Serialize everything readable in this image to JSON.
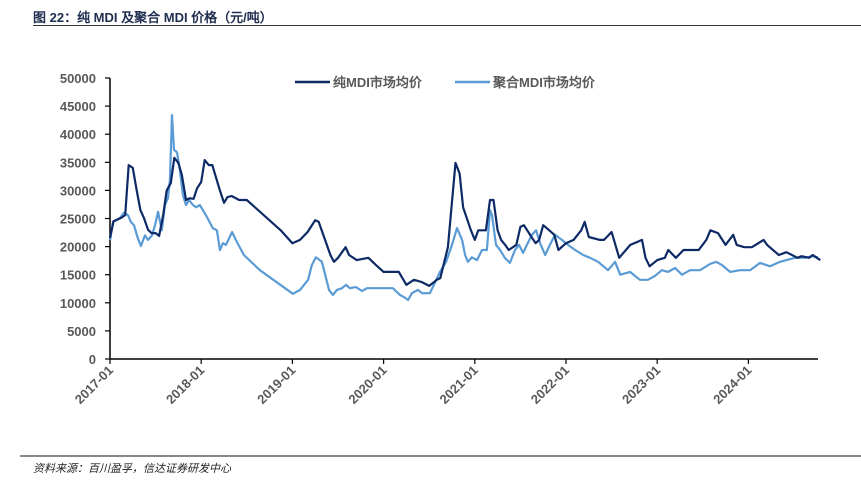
{
  "title": "图 22：纯 MDI 及聚合 MDI 价格（元/吨）",
  "source": "资料来源：百川盈孚，信达证券研发中心",
  "chart_data": {
    "type": "line",
    "title": "",
    "xlabel": "",
    "ylabel": "",
    "ylim": [
      0,
      50000
    ],
    "yticks": [
      "0",
      "5000",
      "10000",
      "15000",
      "20000",
      "25000",
      "30000",
      "35000",
      "40000",
      "45000",
      "50000"
    ],
    "xticks": [
      "2017-01",
      "2018-01",
      "2019-01",
      "2020-01",
      "2021-01",
      "2022-01",
      "2023-01",
      "2024-01"
    ],
    "grid": false,
    "legend_position": "top",
    "series": [
      {
        "name": "纯MDI市场均价",
        "color": "#0d2a66",
        "points": [
          [
            "2017-01-01",
            21500
          ],
          [
            "2017-01-15",
            24500
          ],
          [
            "2017-02-15",
            25100
          ],
          [
            "2017-03-01",
            25600
          ],
          [
            "2017-03-15",
            34500
          ],
          [
            "2017-04-01",
            34000
          ],
          [
            "2017-04-15",
            30400
          ],
          [
            "2017-05-01",
            26500
          ],
          [
            "2017-05-15",
            25100
          ],
          [
            "2017-06-01",
            23000
          ],
          [
            "2017-06-15",
            22400
          ],
          [
            "2017-07-01",
            22400
          ],
          [
            "2017-07-15",
            21900
          ],
          [
            "2017-08-01",
            25600
          ],
          [
            "2017-08-15",
            30000
          ],
          [
            "2017-09-01",
            31300
          ],
          [
            "2017-09-15",
            35800
          ],
          [
            "2017-10-01",
            34900
          ],
          [
            "2017-10-15",
            32700
          ],
          [
            "2017-11-01",
            28300
          ],
          [
            "2017-11-15",
            28600
          ],
          [
            "2017-12-01",
            28500
          ],
          [
            "2017-12-15",
            30400
          ],
          [
            "2018-01-01",
            31500
          ],
          [
            "2018-01-15",
            35400
          ],
          [
            "2018-02-01",
            34500
          ],
          [
            "2018-02-15",
            34500
          ],
          [
            "2018-03-15",
            30000
          ],
          [
            "2018-04-01",
            27800
          ],
          [
            "2018-04-15",
            28800
          ],
          [
            "2018-05-01",
            29000
          ],
          [
            "2018-06-01",
            28300
          ],
          [
            "2018-07-01",
            28300
          ],
          [
            "2018-11-15",
            22900
          ],
          [
            "2019-01-01",
            20600
          ],
          [
            "2019-02-01",
            21200
          ],
          [
            "2019-03-01",
            22600
          ],
          [
            "2019-04-01",
            24700
          ],
          [
            "2019-04-15",
            24400
          ],
          [
            "2019-06-01",
            18500
          ],
          [
            "2019-06-15",
            17300
          ],
          [
            "2019-07-01",
            18000
          ],
          [
            "2019-08-01",
            19900
          ],
          [
            "2019-08-15",
            18500
          ],
          [
            "2019-09-15",
            17600
          ],
          [
            "2019-11-01",
            18000
          ],
          [
            "2019-12-01",
            16700
          ],
          [
            "2020-01-01",
            15500
          ],
          [
            "2020-03-01",
            15500
          ],
          [
            "2020-04-01",
            13200
          ],
          [
            "2020-05-01",
            14100
          ],
          [
            "2020-06-01",
            13700
          ],
          [
            "2020-07-01",
            13000
          ],
          [
            "2020-07-15",
            13500
          ],
          [
            "2020-08-01",
            14100
          ],
          [
            "2020-08-15",
            14400
          ],
          [
            "2020-09-15",
            19900
          ],
          [
            "2020-10-15",
            34900
          ],
          [
            "2020-11-01",
            33000
          ],
          [
            "2020-11-15",
            27000
          ],
          [
            "2020-12-15",
            23000
          ],
          [
            "2021-01-01",
            21200
          ],
          [
            "2021-01-15",
            22900
          ],
          [
            "2021-02-15",
            22900
          ],
          [
            "2021-03-01",
            28300
          ],
          [
            "2021-03-15",
            28300
          ],
          [
            "2021-04-01",
            22900
          ],
          [
            "2021-04-15",
            21200
          ],
          [
            "2021-05-01",
            20300
          ],
          [
            "2021-05-15",
            19400
          ],
          [
            "2021-06-15",
            20300
          ],
          [
            "2021-07-01",
            23500
          ],
          [
            "2021-07-15",
            23800
          ],
          [
            "2021-08-15",
            21700
          ],
          [
            "2021-09-01",
            20600
          ],
          [
            "2021-09-15",
            21200
          ],
          [
            "2021-10-01",
            23800
          ],
          [
            "2021-10-15",
            23300
          ],
          [
            "2021-11-15",
            22100
          ],
          [
            "2021-12-01",
            19400
          ],
          [
            "2022-01-01",
            20600
          ],
          [
            "2022-02-01",
            21200
          ],
          [
            "2022-03-01",
            22900
          ],
          [
            "2022-03-15",
            24400
          ],
          [
            "2022-04-01",
            21700
          ],
          [
            "2022-05-15",
            21200
          ],
          [
            "2022-06-01",
            21200
          ],
          [
            "2022-07-01",
            22600
          ],
          [
            "2022-08-01",
            18000
          ],
          [
            "2022-09-15",
            20300
          ],
          [
            "2022-11-01",
            21200
          ],
          [
            "2022-11-15",
            18000
          ],
          [
            "2022-12-01",
            16500
          ],
          [
            "2023-01-01",
            17600
          ],
          [
            "2023-02-01",
            18000
          ],
          [
            "2023-02-15",
            19400
          ],
          [
            "2023-03-15",
            18000
          ],
          [
            "2023-04-15",
            19400
          ],
          [
            "2023-06-15",
            19400
          ],
          [
            "2023-07-15",
            21200
          ],
          [
            "2023-08-01",
            22900
          ],
          [
            "2023-09-01",
            22400
          ],
          [
            "2023-10-01",
            20300
          ],
          [
            "2023-11-01",
            22100
          ],
          [
            "2023-11-15",
            20300
          ],
          [
            "2023-12-15",
            19900
          ],
          [
            "2024-01-15",
            19900
          ],
          [
            "2024-03-01",
            21200
          ],
          [
            "2024-03-15",
            20300
          ],
          [
            "2024-05-01",
            18500
          ],
          [
            "2024-06-01",
            19000
          ],
          [
            "2024-07-15",
            18000
          ],
          [
            "2024-08-01",
            18300
          ],
          [
            "2024-09-01",
            18000
          ],
          [
            "2024-09-15",
            18500
          ],
          [
            "2024-10-01",
            18000
          ],
          [
            "2024-10-15",
            17600
          ]
        ]
      },
      {
        "name": "聚合MDI市场均价",
        "color": "#5b9bd5",
        "points": [
          [
            "2017-01-01",
            21200
          ],
          [
            "2017-01-13",
            24400
          ],
          [
            "2017-02-11",
            25100
          ],
          [
            "2017-02-26",
            26000
          ],
          [
            "2017-03-12",
            25600
          ],
          [
            "2017-03-24",
            24400
          ],
          [
            "2017-04-06",
            23800
          ],
          [
            "2017-04-21",
            21500
          ],
          [
            "2017-05-03",
            20100
          ],
          [
            "2017-05-19",
            22000
          ],
          [
            "2017-06-01",
            21200
          ],
          [
            "2017-06-17",
            22000
          ],
          [
            "2017-06-29",
            23800
          ],
          [
            "2017-07-11",
            26200
          ],
          [
            "2017-07-26",
            22900
          ],
          [
            "2017-08-08",
            27400
          ],
          [
            "2017-08-20",
            28600
          ],
          [
            "2017-08-28",
            31800
          ],
          [
            "2017-09-06",
            43400
          ],
          [
            "2017-09-14",
            37200
          ],
          [
            "2017-09-26",
            36800
          ],
          [
            "2017-10-07",
            33600
          ],
          [
            "2017-10-19",
            29200
          ],
          [
            "2017-11-01",
            27400
          ],
          [
            "2017-11-13",
            28300
          ],
          [
            "2017-11-29",
            27400
          ],
          [
            "2017-12-11",
            27000
          ],
          [
            "2017-12-26",
            27400
          ],
          [
            "2018-01-20",
            25600
          ],
          [
            "2018-02-17",
            23300
          ],
          [
            "2018-03-03",
            22900
          ],
          [
            "2018-03-15",
            19400
          ],
          [
            "2018-03-27",
            20600
          ],
          [
            "2018-04-09",
            20300
          ],
          [
            "2018-05-03",
            22600
          ],
          [
            "2018-05-18",
            21200
          ],
          [
            "2018-06-20",
            18500
          ],
          [
            "2018-08-23",
            15800
          ],
          [
            "2019-01-03",
            11600
          ],
          [
            "2019-02-01",
            12300
          ],
          [
            "2019-03-03",
            14100
          ],
          [
            "2019-03-18",
            16700
          ],
          [
            "2019-04-04",
            18100
          ],
          [
            "2019-04-28",
            17300
          ],
          [
            "2019-05-26",
            12300
          ],
          [
            "2019-06-11",
            11400
          ],
          [
            "2019-06-27",
            12300
          ],
          [
            "2019-07-17",
            12600
          ],
          [
            "2019-08-03",
            13200
          ],
          [
            "2019-08-18",
            12600
          ],
          [
            "2019-09-12",
            12800
          ],
          [
            "2019-10-06",
            12100
          ],
          [
            "2019-10-26",
            12600
          ],
          [
            "2019-12-05",
            12600
          ],
          [
            "2020-02-08",
            12600
          ],
          [
            "2020-03-06",
            11400
          ],
          [
            "2020-03-26",
            10900
          ],
          [
            "2020-04-08",
            10500
          ],
          [
            "2020-04-23",
            11700
          ],
          [
            "2020-05-17",
            12300
          ],
          [
            "2020-06-03",
            11700
          ],
          [
            "2020-07-04",
            11700
          ],
          [
            "2020-07-20",
            13200
          ],
          [
            "2020-08-14",
            15500
          ],
          [
            "2020-09-08",
            17300
          ],
          [
            "2020-10-01",
            20300
          ],
          [
            "2020-10-21",
            23300
          ],
          [
            "2020-11-11",
            21200
          ],
          [
            "2020-11-23",
            18500
          ],
          [
            "2020-12-04",
            17300
          ],
          [
            "2020-12-20",
            18100
          ],
          [
            "2021-01-10",
            17600
          ],
          [
            "2021-01-30",
            19400
          ],
          [
            "2021-02-19",
            19400
          ],
          [
            "2021-03-01",
            26500
          ],
          [
            "2021-03-09",
            25600
          ],
          [
            "2021-03-25",
            20300
          ],
          [
            "2021-04-11",
            19400
          ],
          [
            "2021-04-30",
            18000
          ],
          [
            "2021-05-20",
            17100
          ],
          [
            "2021-06-10",
            19400
          ],
          [
            "2021-06-26",
            20300
          ],
          [
            "2021-07-12",
            18900
          ],
          [
            "2021-07-27",
            20300
          ],
          [
            "2021-08-17",
            22100
          ],
          [
            "2021-09-03",
            22900
          ],
          [
            "2021-09-19",
            20600
          ],
          [
            "2021-10-09",
            18500
          ],
          [
            "2021-10-28",
            20300
          ],
          [
            "2021-11-18",
            22100
          ],
          [
            "2021-12-15",
            21200
          ],
          [
            "2022-01-09",
            20300
          ],
          [
            "2022-02-07",
            19400
          ],
          [
            "2022-03-09",
            18500
          ],
          [
            "2022-04-06",
            18000
          ],
          [
            "2022-05-08",
            17300
          ],
          [
            "2022-06-17",
            15800
          ],
          [
            "2022-07-15",
            17300
          ],
          [
            "2022-08-05",
            15000
          ],
          [
            "2022-09-14",
            15500
          ],
          [
            "2022-10-23",
            14100
          ],
          [
            "2022-11-25",
            14100
          ],
          [
            "2022-12-23",
            14800
          ],
          [
            "2023-01-20",
            15800
          ],
          [
            "2023-02-14",
            15500
          ],
          [
            "2023-03-12",
            16200
          ],
          [
            "2023-04-09",
            15000
          ],
          [
            "2023-05-11",
            15800
          ],
          [
            "2023-06-20",
            15800
          ],
          [
            "2023-07-30",
            16900
          ],
          [
            "2023-08-24",
            17300
          ],
          [
            "2023-09-17",
            16700
          ],
          [
            "2023-10-19",
            15500
          ],
          [
            "2023-11-28",
            15800
          ],
          [
            "2024-01-08",
            15800
          ],
          [
            "2024-02-17",
            17100
          ],
          [
            "2024-03-27",
            16500
          ],
          [
            "2024-05-06",
            17300
          ],
          [
            "2024-07-05",
            18000
          ],
          [
            "2024-08-15",
            18000
          ],
          [
            "2024-09-12",
            18300
          ],
          [
            "2024-10-06",
            18100
          ]
        ]
      }
    ]
  }
}
